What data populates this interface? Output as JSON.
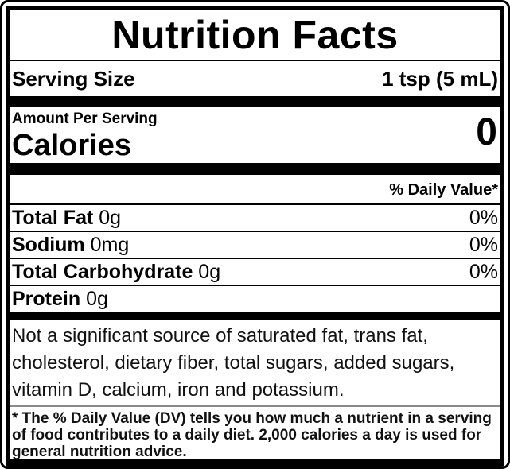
{
  "label": {
    "title": "Nutrition Facts",
    "serving": {
      "label": "Serving Size",
      "value": "1 tsp (5 mL)"
    },
    "amount_per_serving": "Amount Per Serving",
    "calories": {
      "label": "Calories",
      "value": "0"
    },
    "daily_value_header": "% Daily Value*",
    "nutrients": [
      {
        "name": "Total Fat",
        "amount": "0g",
        "dv": "0%"
      },
      {
        "name": "Sodium",
        "amount": "0mg",
        "dv": "0%"
      },
      {
        "name": "Total Carbohydrate",
        "amount": "0g",
        "dv": "0%"
      },
      {
        "name": "Protein",
        "amount": "0g",
        "dv": ""
      }
    ],
    "not_significant_text": "Not a significant source of saturated fat, trans fat, cholesterol, dietary fiber, total sugars, added sugars, vitamin D, calcium, iron and potassium.",
    "footnote": "* The % Daily Value (DV) tells you how much a nutrient in a serving of food contributes to a daily diet. 2,000 calories a day is used for general nutrition advice."
  },
  "colors": {
    "text": "#000000",
    "background": "#ffffff",
    "divider": "#000000",
    "light_divider": "#8a8a8a"
  }
}
